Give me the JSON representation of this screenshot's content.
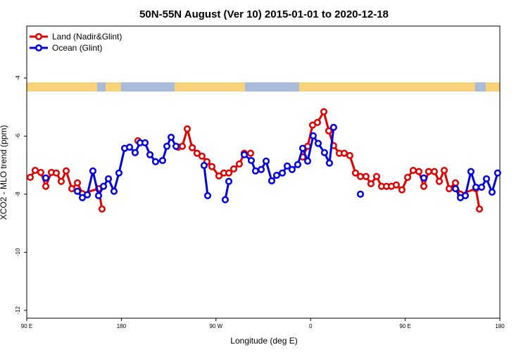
{
  "chart_data": {
    "type": "line",
    "title": "50N-55N August (Ver 10)   2015-01-01 to 2020-12-18",
    "x_label": "Longitude (deg E)",
    "y_label": "XCO2 - MLO trend (ppm)",
    "xlim": [
      90,
      540
    ],
    "ylim": [
      -12.27,
      -2.21
    ],
    "xticks": [
      {
        "value": 90,
        "label": "90 E"
      },
      180,
      {
        "value": 270,
        "label": "90 W"
      },
      {
        "value": 360,
        "label": "0"
      },
      {
        "value": 450,
        "label": "90 E"
      },
      {
        "value": 540,
        "label": "180"
      }
    ],
    "yticks": [
      -12,
      -10,
      -8,
      -6,
      -4
    ],
    "legend": "top-left",
    "series": [
      {
        "name": "Land (Nadir&Glint)",
        "color": "#e00000",
        "x": [
          93.3,
          98.0,
          103.4,
          108.1,
          113.4,
          118.1,
          122.8,
          127.5,
          132.9,
          138.2,
          142.9,
          158.3,
          161.6,
          null,
          195.8,
          null,
          234.0,
          238.0,
          242.7,
          247.4,
          252.0,
          256.7,
          261.4,
          266.1,
          272.8,
          277.5,
          282.2,
          286.9,
          292.2,
          296.9,
          302.9,
          null,
          352.5,
          357.2,
          361.9,
          366.5,
          372.6,
          377.3,
          381.9,
          387.3,
          392.0,
          397.3,
          402.7,
          407.4,
          412.7,
          417.4,
          422.8,
          427.5,
          432.2,
          436.9,
          441.5,
          446.9,
          452.3,
          457.6,
          463.0,
          467.7,
          472.3,
          477.7,
          482.4,
          487.1,
          491.8,
          497.8,
          502.5,
          517.2,
          520.6
        ],
        "values": [
          -7.42,
          -7.18,
          -7.25,
          -7.73,
          -7.25,
          -7.27,
          -7.56,
          -7.2,
          -7.81,
          -7.61,
          -7.98,
          -7.81,
          -8.51,
          null,
          -6.16,
          null,
          -6.38,
          -6.35,
          -5.75,
          -6.4,
          -6.59,
          -6.69,
          -6.88,
          -7.05,
          -7.37,
          -7.27,
          -7.27,
          -7.13,
          -6.96,
          -6.59,
          -6.59,
          null,
          -6.72,
          -6.35,
          -5.62,
          -5.53,
          -5.16,
          -5.82,
          -6.33,
          -6.59,
          -6.59,
          -6.67,
          -7.27,
          -7.39,
          -7.39,
          -7.64,
          -7.39,
          -7.73,
          -7.73,
          -7.73,
          -7.68,
          -7.85,
          -7.42,
          -7.18,
          -7.22,
          -7.73,
          -7.22,
          -7.22,
          -7.56,
          -7.18,
          -7.81,
          -7.61,
          -8.0,
          -7.81,
          -8.51
        ]
      },
      {
        "name": "Ocean (Glint)",
        "color": "#0000e0",
        "x": [
          108.1,
          null,
          138.2,
          142.9,
          147.6,
          152.9,
          158.3,
          163.0,
          167.7,
          173.0,
          177.7,
          183.1,
          187.8,
          193.1,
          197.8,
          202.5,
          207.2,
          212.5,
          219.2,
          223.3,
          227.3,
          232.0,
          null,
          258.7,
          262.1,
          null,
          278.8,
          282.2,
          null,
          296.9,
          303.6,
          307.6,
          313.0,
          317.7,
          323.0,
          327.7,
          333.1,
          337.8,
          342.4,
          347.8,
          352.5,
          357.2,
          362.5,
          367.2,
          373.2,
          377.9,
          381.9,
          null,
          407.4,
          null,
          467.7,
          null,
          497.8,
          502.5,
          507.2,
          512.5,
          517.2,
          522.6,
          527.3,
          532.6,
          537.9
        ],
        "values": [
          -7.44,
          null,
          -7.9,
          -8.12,
          -8.02,
          -7.2,
          -8.05,
          -7.73,
          -7.47,
          -7.9,
          -7.27,
          -6.42,
          -6.38,
          -6.57,
          -6.23,
          -6.23,
          -6.64,
          -6.88,
          -6.84,
          -6.35,
          -6.04,
          -6.35,
          null,
          -7.01,
          -8.05,
          null,
          -8.19,
          -7.56,
          null,
          -6.64,
          -6.84,
          -7.2,
          -7.15,
          -6.86,
          -7.54,
          -7.35,
          -7.27,
          -7.03,
          -7.15,
          -6.98,
          -6.42,
          -6.86,
          -5.99,
          -6.25,
          -6.57,
          -6.93,
          -5.7,
          null,
          -8.0,
          null,
          -7.44,
          null,
          -7.81,
          -8.12,
          -8.05,
          -7.22,
          -7.76,
          -7.76,
          -7.47,
          -7.93,
          -7.27
        ]
      }
    ]
  }
}
